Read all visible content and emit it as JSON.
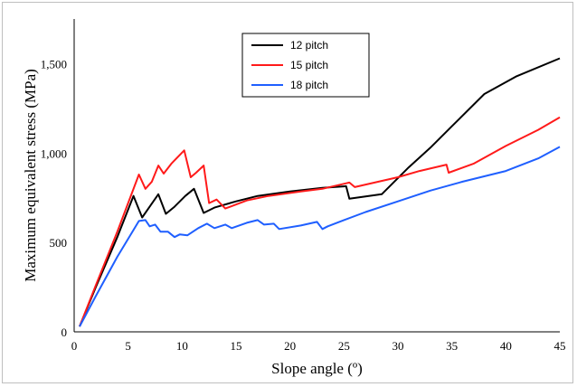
{
  "chart_data": {
    "type": "line",
    "title": "",
    "xlabel": "Slope angle (º)",
    "ylabel": "Maximum equivalent stress (MPa)",
    "xlim": [
      0,
      45
    ],
    "ylim": [
      0,
      1750
    ],
    "x_ticks": [
      "0",
      "5",
      "10",
      "15",
      "20",
      "25",
      "30",
      "35",
      "40",
      "45"
    ],
    "x_tick_values": [
      0,
      5,
      10,
      15,
      20,
      25,
      30,
      35,
      40,
      45
    ],
    "y_ticks": [
      "0",
      "500",
      "1,000",
      "1,500"
    ],
    "y_tick_values": [
      0,
      500,
      1000,
      1500
    ],
    "grid": false,
    "legend_position": "top-center",
    "series": [
      {
        "name": "12 pitch",
        "color": "#000000",
        "points": [
          [
            0.5,
            30
          ],
          [
            2,
            250
          ],
          [
            4,
            530
          ],
          [
            5.5,
            760
          ],
          [
            6.3,
            640
          ],
          [
            7,
            700
          ],
          [
            7.8,
            770
          ],
          [
            8.5,
            660
          ],
          [
            9.3,
            700
          ],
          [
            10.3,
            760
          ],
          [
            11.1,
            800
          ],
          [
            12,
            665
          ],
          [
            13,
            695
          ],
          [
            15,
            730
          ],
          [
            17,
            760
          ],
          [
            20,
            785
          ],
          [
            23,
            805
          ],
          [
            25.2,
            815
          ],
          [
            25.5,
            745
          ],
          [
            28.5,
            770
          ],
          [
            31,
            920
          ],
          [
            33,
            1030
          ],
          [
            35,
            1150
          ],
          [
            38,
            1330
          ],
          [
            41,
            1430
          ],
          [
            45,
            1530
          ]
        ]
      },
      {
        "name": "15 pitch",
        "color": "#ff1a1a",
        "points": [
          [
            0.5,
            30
          ],
          [
            2,
            260
          ],
          [
            4,
            560
          ],
          [
            6,
            880
          ],
          [
            6.6,
            800
          ],
          [
            7.2,
            840
          ],
          [
            7.8,
            930
          ],
          [
            8.3,
            885
          ],
          [
            9,
            940
          ],
          [
            10.2,
            1015
          ],
          [
            10.8,
            865
          ],
          [
            11.3,
            890
          ],
          [
            12,
            930
          ],
          [
            12.5,
            720
          ],
          [
            13.2,
            740
          ],
          [
            14,
            690
          ],
          [
            16,
            735
          ],
          [
            18,
            760
          ],
          [
            21,
            785
          ],
          [
            23,
            800
          ],
          [
            25.5,
            835
          ],
          [
            26,
            810
          ],
          [
            30,
            865
          ],
          [
            32,
            900
          ],
          [
            34.5,
            935
          ],
          [
            34.7,
            890
          ],
          [
            37,
            940
          ],
          [
            40,
            1040
          ],
          [
            43,
            1130
          ],
          [
            45,
            1200
          ]
        ]
      },
      {
        "name": "18 pitch",
        "color": "#1f5fff",
        "points": [
          [
            0.5,
            30
          ],
          [
            2,
            200
          ],
          [
            4,
            420
          ],
          [
            6,
            620
          ],
          [
            6.6,
            625
          ],
          [
            7,
            590
          ],
          [
            7.5,
            600
          ],
          [
            8,
            560
          ],
          [
            8.7,
            560
          ],
          [
            9.3,
            530
          ],
          [
            9.8,
            545
          ],
          [
            10.5,
            540
          ],
          [
            11.5,
            580
          ],
          [
            12.3,
            605
          ],
          [
            13,
            580
          ],
          [
            14,
            600
          ],
          [
            14.6,
            580
          ],
          [
            16,
            610
          ],
          [
            17,
            625
          ],
          [
            17.6,
            600
          ],
          [
            18.5,
            605
          ],
          [
            19,
            575
          ],
          [
            21,
            595
          ],
          [
            22.5,
            615
          ],
          [
            23,
            575
          ],
          [
            23.5,
            590
          ],
          [
            25,
            625
          ],
          [
            27,
            670
          ],
          [
            30,
            730
          ],
          [
            33,
            790
          ],
          [
            36,
            840
          ],
          [
            40,
            900
          ],
          [
            43,
            970
          ],
          [
            45,
            1035
          ]
        ]
      }
    ]
  }
}
